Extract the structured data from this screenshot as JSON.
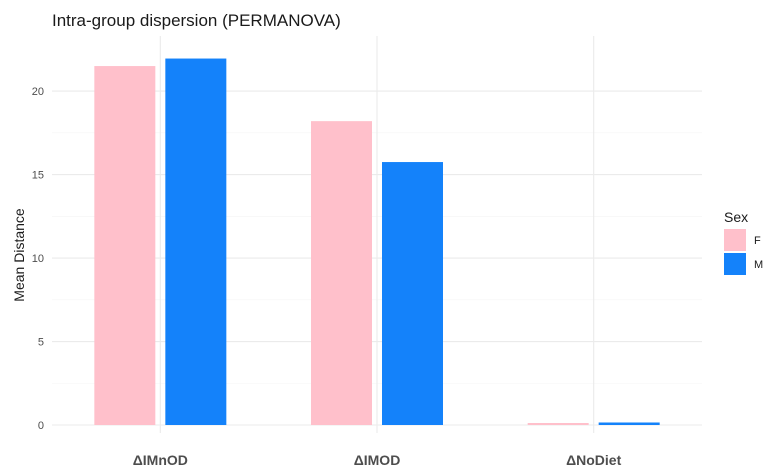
{
  "chart_data": {
    "type": "bar",
    "title": "Intra-group dispersion (PERMANOVA)",
    "xlabel": "",
    "ylabel": "Mean Distance",
    "categories": [
      "ΔIMnOD",
      "ΔIMOD",
      "ΔNoDiet"
    ],
    "series": [
      {
        "name": "F",
        "color": "#FFC0CB",
        "values": [
          21.5,
          18.2,
          0.12
        ]
      },
      {
        "name": "M",
        "color": "#1482FA",
        "values": [
          21.95,
          15.75,
          0.15
        ]
      }
    ],
    "ylim": [
      0,
      23.3
    ],
    "yticks": [
      0,
      5,
      10,
      15,
      20
    ],
    "grid": true,
    "legend": {
      "title": "Sex",
      "position": "right"
    }
  }
}
